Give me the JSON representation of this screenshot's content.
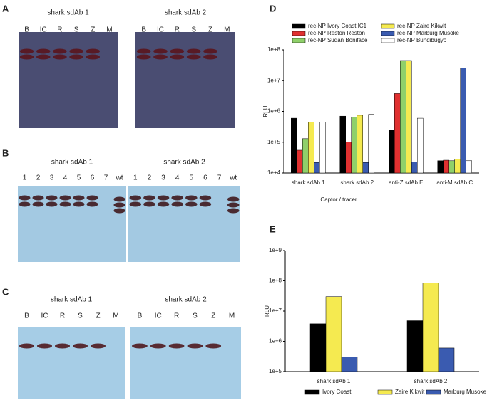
{
  "panels": [
    {
      "letter": "A",
      "blots": [
        {
          "title": "shark sdAb 1",
          "lanes": [
            "B",
            "IC",
            "R",
            "S",
            "Z",
            "M"
          ]
        },
        {
          "title": "shark sdAb 2",
          "lanes": [
            "B",
            "IC",
            "R",
            "S",
            "Z",
            "M"
          ]
        }
      ]
    },
    {
      "letter": "B",
      "blots": [
        {
          "title": "shark sdAb 1",
          "lanes": [
            "1",
            "2",
            "3",
            "4",
            "5",
            "6",
            "7",
            "wt"
          ]
        },
        {
          "title": "shark sdAb 2",
          "lanes": [
            "1",
            "2",
            "3",
            "4",
            "5",
            "6",
            "7",
            "wt"
          ]
        }
      ]
    },
    {
      "letter": "C",
      "blots": [
        {
          "title": "shark sdAb 1",
          "lanes": [
            "B",
            "IC",
            "R",
            "S",
            "Z",
            "M"
          ]
        },
        {
          "title": "shark sdAb 2",
          "lanes": [
            "B",
            "IC",
            "R",
            "S",
            "Z",
            "M"
          ]
        }
      ]
    }
  ],
  "chart_data": [
    {
      "type": "bar",
      "panel": "D",
      "y_label": "RLU",
      "x_label": "Captor / tracer",
      "log_scale": true,
      "legend": "top",
      "categories": [
        "shark sdAb 1",
        "shark sdAb 2",
        "anti-Z sdAb E",
        "anti-M sdAb C"
      ],
      "ylim": [
        10000,
        100000000
      ],
      "yticks": [
        {
          "value": 10000,
          "label": "1e+4"
        },
        {
          "value": 100000,
          "label": "1e+5"
        },
        {
          "value": 1000000,
          "label": "1e+6"
        },
        {
          "value": 10000000,
          "label": "1e+7"
        },
        {
          "value": 100000000,
          "label": "1e+8"
        }
      ],
      "series": [
        {
          "name": "rec-NP Ivory Coast IC1",
          "color": "#000000",
          "values": [
            600000,
            700000,
            250000,
            25000
          ]
        },
        {
          "name": "rec-NP Reston Reston",
          "color": "#e03030",
          "values": [
            55000,
            100000,
            3800000,
            26000
          ]
        },
        {
          "name": "rec-NP Sudan Boniface",
          "color": "#8fd06a",
          "values": [
            130000,
            650000,
            45000000,
            25000
          ]
        },
        {
          "name": "rec-NP Zaire Kikwit",
          "color": "#f5ea50",
          "values": [
            450000,
            750000,
            45000000,
            28000
          ]
        },
        {
          "name": "rec-NP Marburg Musoke",
          "color": "#3a5bb0",
          "values": [
            22000,
            22000,
            23000,
            26000000
          ]
        },
        {
          "name": "rec-NP Bundibugyo",
          "color": "#ffffff",
          "values": [
            450000,
            800000,
            600000,
            25000
          ]
        }
      ]
    },
    {
      "type": "bar",
      "panel": "E",
      "y_label": "RLU",
      "log_scale": true,
      "legend": "bottom",
      "categories": [
        "shark sdAb 1",
        "shark sdAb 2"
      ],
      "ylim": [
        100000,
        1000000000
      ],
      "yticks": [
        {
          "value": 100000,
          "label": "1e+5"
        },
        {
          "value": 1000000,
          "label": "1e+6"
        },
        {
          "value": 10000000,
          "label": "1e+7"
        },
        {
          "value": 100000000,
          "label": "1e+8"
        },
        {
          "value": 1000000000,
          "label": "1e+9"
        }
      ],
      "series": [
        {
          "name": "Ivory Coast",
          "color": "#000000",
          "values": [
            3800000,
            4800000
          ]
        },
        {
          "name": "Zaire Kikwit",
          "color": "#f5ea50",
          "values": [
            30000000,
            85000000
          ]
        },
        {
          "name": "Marburg Musoke",
          "color": "#3a5bb0",
          "values": [
            300000,
            600000
          ]
        }
      ]
    }
  ]
}
